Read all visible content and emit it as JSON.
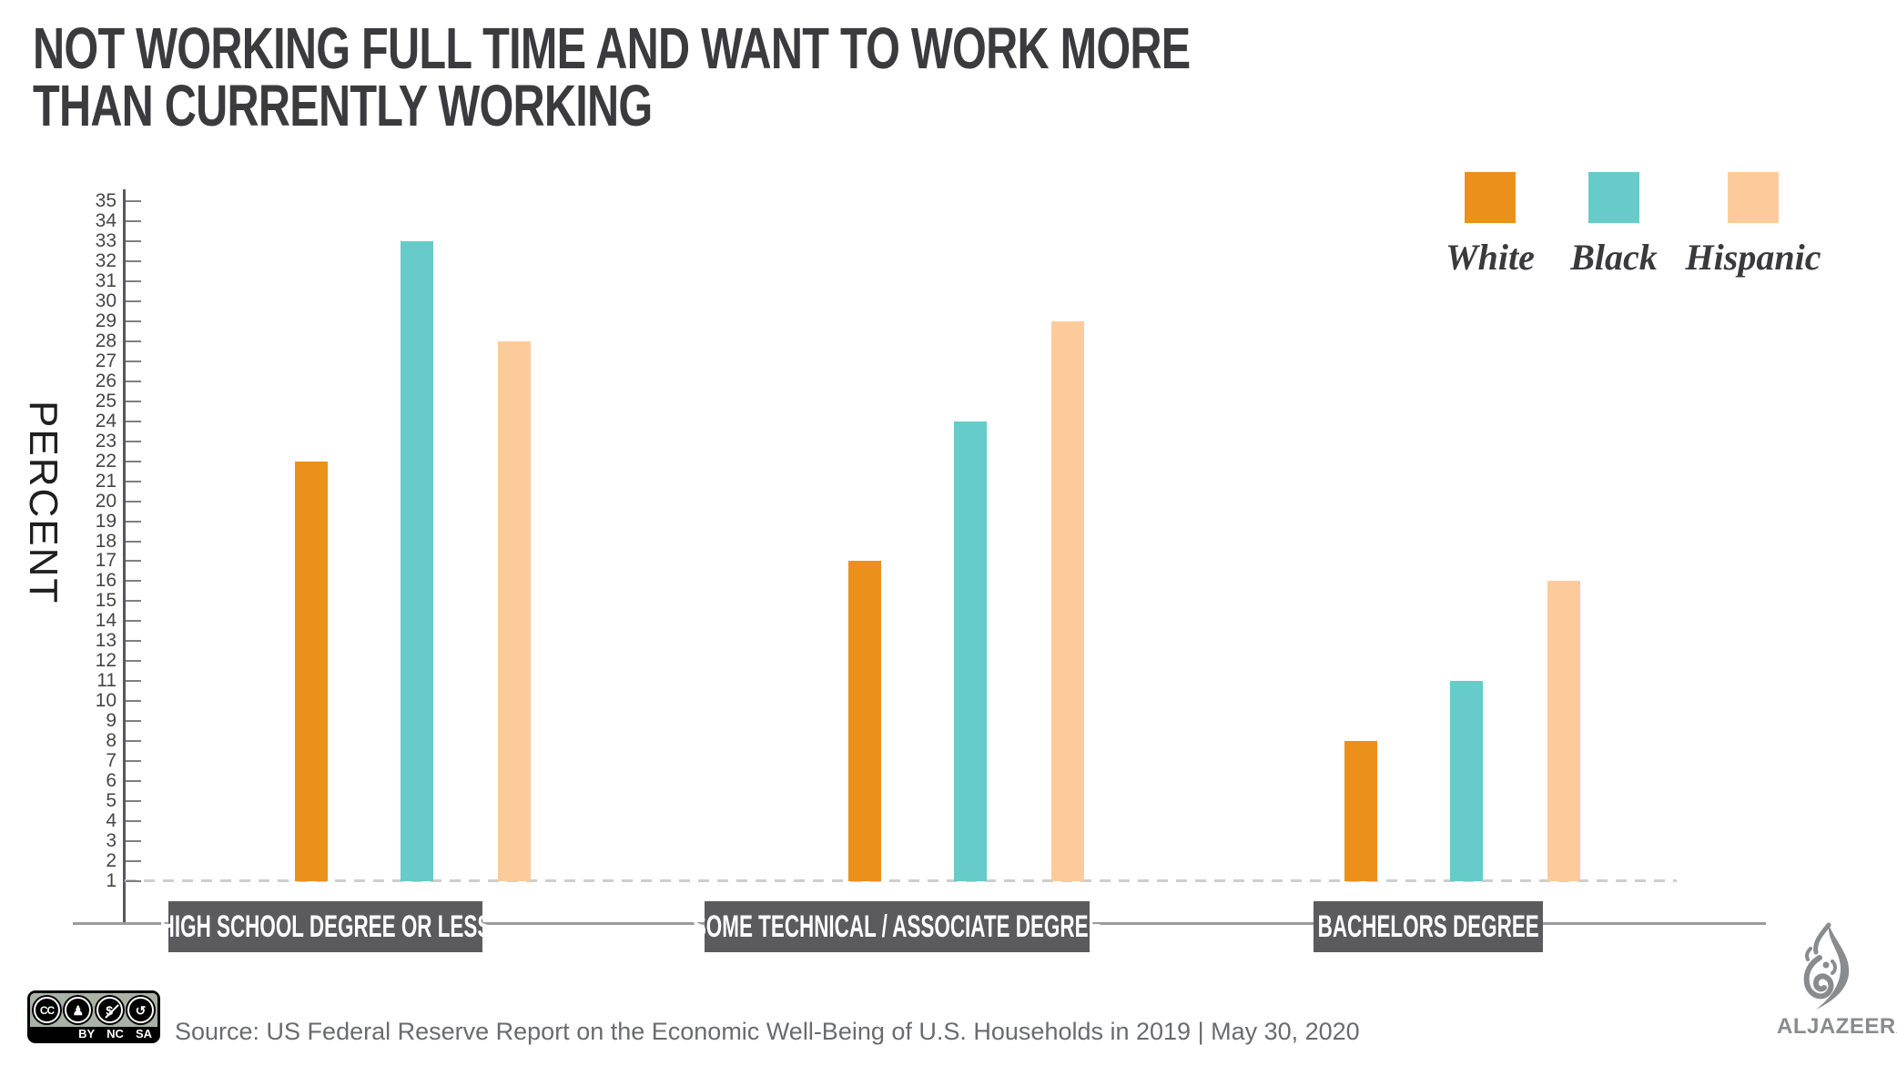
{
  "title": {
    "line1": "NOT WORKING FULL TIME AND WANT TO WORK MORE",
    "line2": "THAN CURRENTLY WORKING"
  },
  "legend": [
    {
      "label": "White",
      "color": "#EC901C"
    },
    {
      "label": "Black",
      "color": "#66CBC9"
    },
    {
      "label": "Hispanic",
      "color": "#FDCB9B"
    }
  ],
  "chart_data": {
    "type": "bar",
    "title": "NOT WORKING FULL TIME AND WANT TO WORK MORE THAN CURRENTLY WORKING",
    "xlabel": "",
    "ylabel": "PERCENT",
    "ylim": [
      1,
      35
    ],
    "tick_step": 1,
    "baseline_value": 1,
    "baseline_style": "dashed",
    "grid": false,
    "legend_position": "top-right",
    "categories": [
      "HIGH SCHOOL DEGREE OR LESS",
      "SOME TECHNICAL / ASSOCIATE DEGREE",
      "BACHELORS DEGREE"
    ],
    "series": [
      {
        "name": "White",
        "color": "#EC901C",
        "values": [
          22,
          17,
          8
        ]
      },
      {
        "name": "Black",
        "color": "#66CBC9",
        "values": [
          33,
          24,
          11
        ]
      },
      {
        "name": "Hispanic",
        "color": "#FDCB9B",
        "values": [
          28,
          29,
          16
        ]
      }
    ]
  },
  "footer": {
    "source": "Source: US Federal Reserve Report on the Economic Well-Being of U.S. Households in 2019 |  May 30, 2020",
    "license": {
      "icons": [
        {
          "name": "cc-icon",
          "glyph": "CC"
        },
        {
          "name": "attribution-icon",
          "glyph": "♟"
        },
        {
          "name": "noncommercial-icon",
          "glyph": "$"
        },
        {
          "name": "sharealike-icon",
          "glyph": "↺"
        }
      ],
      "labels": [
        "BY",
        "NC",
        "SA"
      ]
    },
    "brand": "ALJAZEERA"
  }
}
